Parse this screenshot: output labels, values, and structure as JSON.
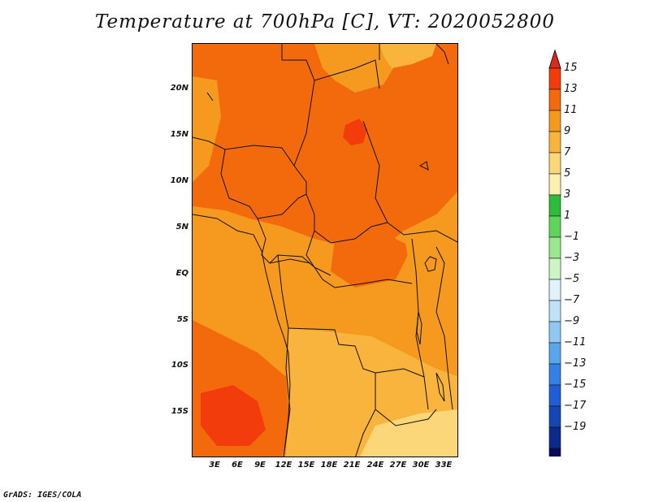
{
  "title": "Temperature at 700hPa [C], VT: 2020052800",
  "credit": "GrADS: IGES/COLA",
  "map": {
    "lat_labels": [
      "20N",
      "15N",
      "10N",
      "5N",
      "EQ",
      "5S",
      "10S",
      "15S"
    ],
    "lon_labels": [
      "3E",
      "6E",
      "9E",
      "12E",
      "15E",
      "18E",
      "21E",
      "24E",
      "27E",
      "30E",
      "33E"
    ]
  },
  "colorbar": {
    "labels": [
      "15",
      "13",
      "11",
      "9",
      "7",
      "5",
      "3",
      "1",
      "−1",
      "−3",
      "−5",
      "−7",
      "−9",
      "−11",
      "−13",
      "−15",
      "−17",
      "−19"
    ],
    "colors": [
      "#e0281e",
      "#f23c0c",
      "#f26a0c",
      "#f59a1e",
      "#f8b43c",
      "#fbd77a",
      "#fcf0b0",
      "#2ebd3a",
      "#5fd45a",
      "#99e890",
      "#ccf5c6",
      "#e2f2fb",
      "#bfe2f9",
      "#90c8f3",
      "#5aa6ec",
      "#3580e4",
      "#1f5ed6",
      "#1446b4",
      "#0c2a8c",
      "#0a0a5a",
      "#dcd9ee"
    ]
  },
  "colors": {
    "t7": "#f8b43c",
    "t9": "#f59a1e",
    "t11": "#f26a0c",
    "t13": "#f23c0c",
    "t5": "#fbd77a"
  }
}
